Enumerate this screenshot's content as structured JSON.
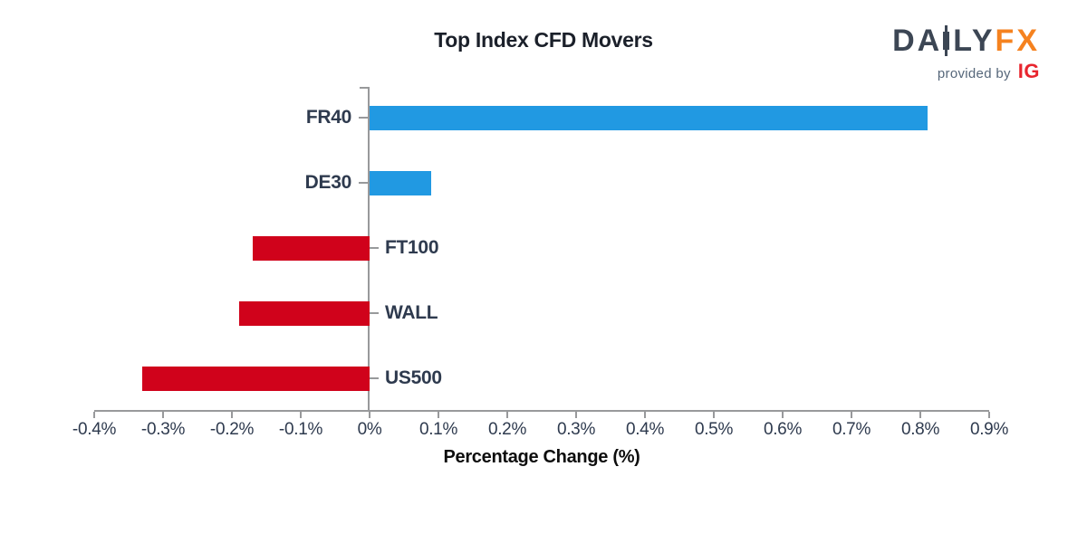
{
  "title": "Top Index CFD Movers",
  "logo": {
    "brand_part1": "DA",
    "brand_part2": "LY",
    "brand_part3": "FX",
    "provided_by": "provided by",
    "provider": "IG"
  },
  "colors": {
    "positive_bar": "#2199e2",
    "negative_bar": "#d0021b",
    "brand_daily": "#3c4654",
    "brand_fx": "#f5821f",
    "provided_by_text": "#56677a",
    "provider_ig": "#e8252e",
    "axis": "#98999b",
    "tick_label": "#2e3a4e"
  },
  "chart_data": {
    "type": "bar",
    "orientation": "horizontal",
    "title": "Top Index CFD Movers",
    "xlabel": "Percentage Change (%)",
    "categories": [
      "FR40",
      "DE30",
      "FT100",
      "WALL",
      "US500"
    ],
    "values": [
      0.81,
      0.09,
      -0.17,
      -0.19,
      -0.33
    ],
    "xlim": [
      -0.4,
      0.9
    ],
    "tick_values": [
      -0.4,
      -0.3,
      -0.2,
      -0.1,
      0,
      0.1,
      0.2,
      0.3,
      0.4,
      0.5,
      0.6,
      0.7,
      0.8,
      0.9
    ],
    "tick_labels": [
      "-0.4%",
      "-0.3%",
      "-0.2%",
      "-0.1%",
      "0%",
      "0.1%",
      "0.2%",
      "0.3%",
      "0.4%",
      "0.5%",
      "0.6%",
      "0.7%",
      "0.8%",
      "0.9%"
    ],
    "grid": false,
    "legend": false
  }
}
